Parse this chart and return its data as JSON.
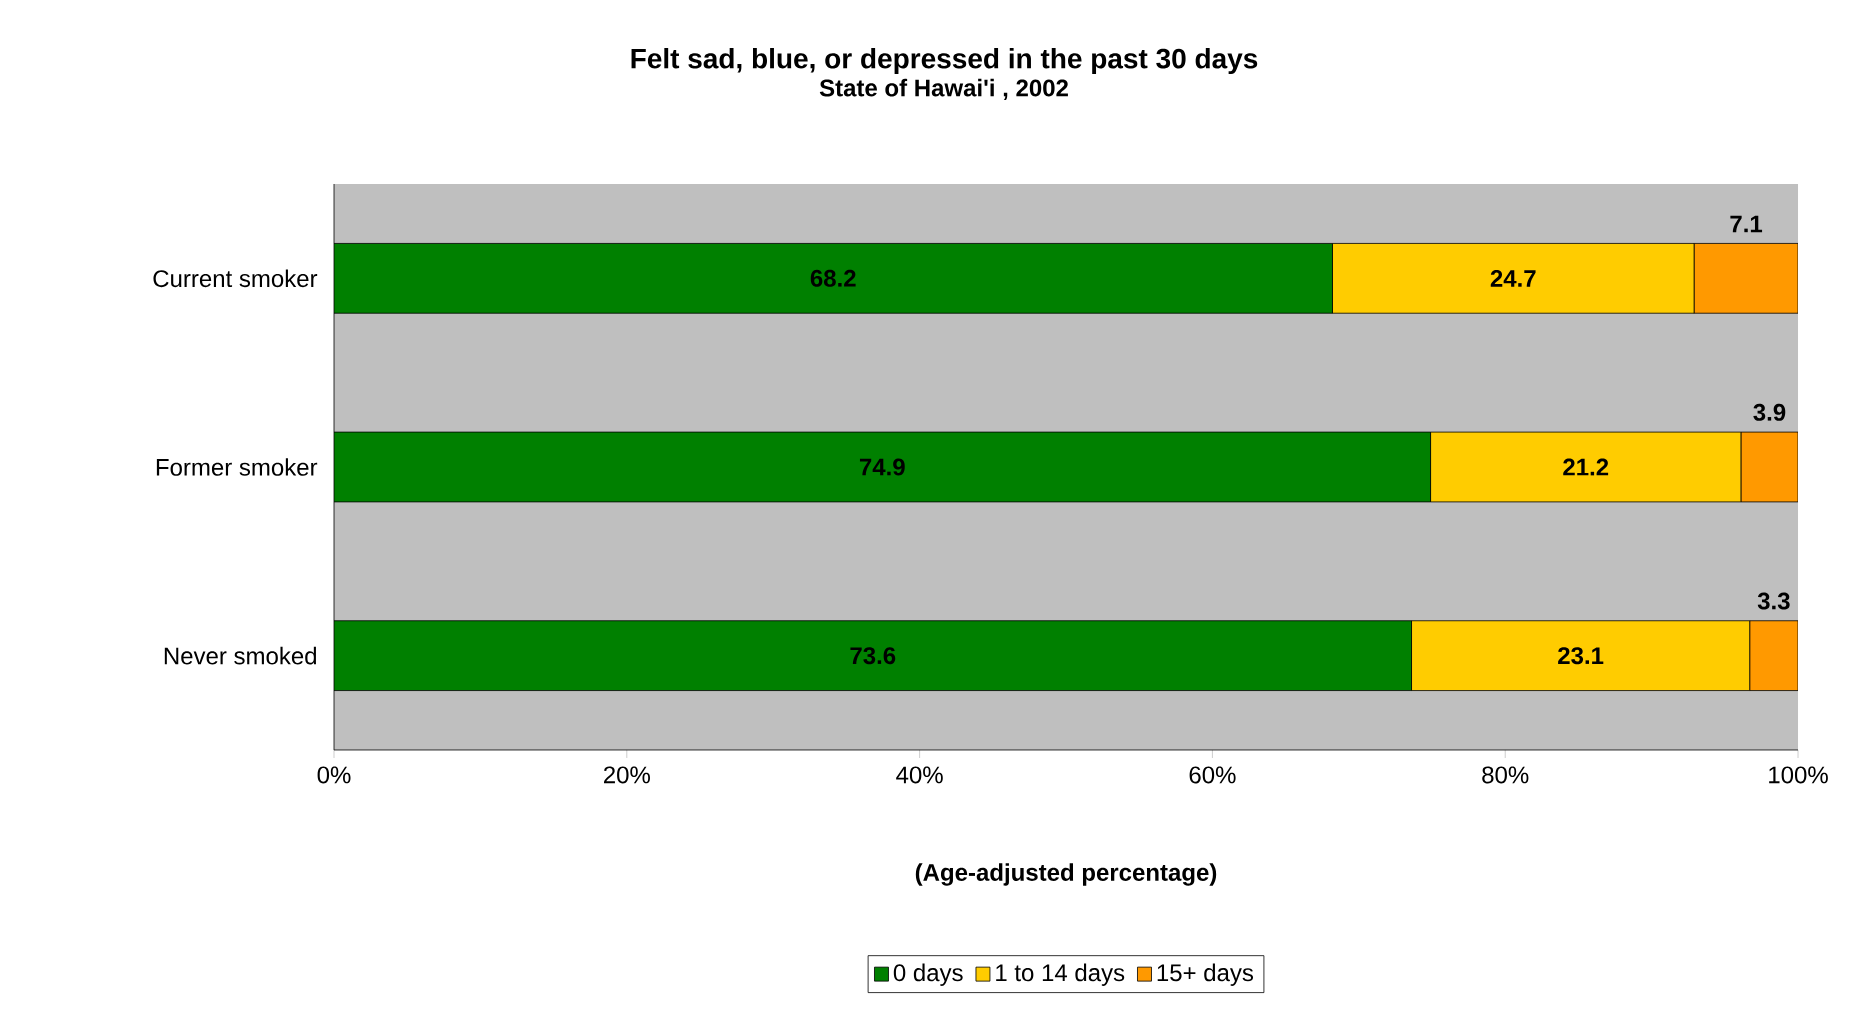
{
  "chart_data": {
    "type": "bar",
    "orientation": "horizontal",
    "stacked": true,
    "data_labels": true,
    "title": "Felt sad, blue, or depressed in the past 30 days",
    "subtitle": "State of Hawai'i , 2002",
    "xlabel": "(Age-adjusted percentage)",
    "categories": [
      "Current smoker",
      "Former smoker",
      "Never smoked"
    ],
    "series": [
      {
        "name": "0 days",
        "color": "#008000",
        "values": [
          68.2,
          74.9,
          73.6
        ]
      },
      {
        "name": "1 to 14 days",
        "color": "#ffcc00",
        "values": [
          24.7,
          21.2,
          23.1
        ]
      },
      {
        "name": "15+ days",
        "color": "#ff9900",
        "values": [
          7.1,
          3.9,
          3.3
        ]
      }
    ],
    "xlim": [
      0,
      100
    ],
    "xticks": [
      {
        "value": 0,
        "label": "0%"
      },
      {
        "value": 20,
        "label": "20%"
      },
      {
        "value": 40,
        "label": "40%"
      },
      {
        "value": 60,
        "label": "60%"
      },
      {
        "value": 80,
        "label": "80%"
      },
      {
        "value": 100,
        "label": "100%"
      }
    ],
    "grid": false,
    "legend": "bottom"
  }
}
